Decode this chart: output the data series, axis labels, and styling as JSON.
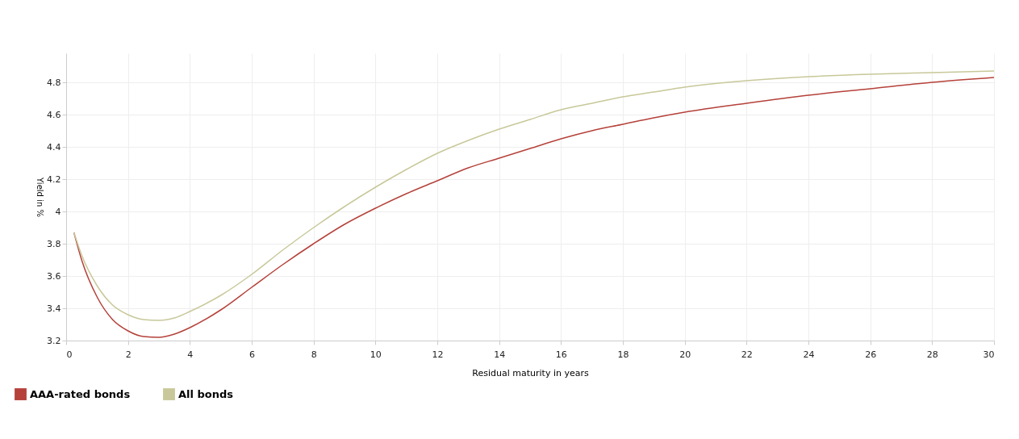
{
  "chart_data": {
    "type": "line",
    "xlabel": "Residual maturity in years",
    "ylabel": "Yield in %",
    "x": [
      0.25,
      0.5,
      1,
      1.5,
      2,
      2.5,
      3,
      3.5,
      4,
      5,
      6,
      7,
      8,
      9,
      10,
      11,
      12,
      13,
      14,
      15,
      16,
      17,
      18,
      19,
      20,
      22,
      24,
      26,
      28,
      30
    ],
    "series": [
      {
        "name": "AAA-rated bonds",
        "color": "#b5413a",
        "values": [
          3.87,
          3.7,
          3.47,
          3.33,
          3.26,
          3.225,
          3.22,
          3.24,
          3.28,
          3.39,
          3.53,
          3.67,
          3.8,
          3.92,
          4.02,
          4.11,
          4.19,
          4.27,
          4.33,
          4.39,
          4.45,
          4.5,
          4.54,
          4.58,
          4.615,
          4.67,
          4.72,
          4.76,
          4.8,
          4.83
        ]
      },
      {
        "name": "All bonds",
        "color": "#c8c89a",
        "values": [
          3.87,
          3.73,
          3.54,
          3.42,
          3.36,
          3.33,
          3.325,
          3.34,
          3.38,
          3.48,
          3.61,
          3.76,
          3.9,
          4.03,
          4.15,
          4.26,
          4.36,
          4.44,
          4.51,
          4.57,
          4.63,
          4.67,
          4.71,
          4.74,
          4.77,
          4.81,
          4.835,
          4.85,
          4.86,
          4.87
        ]
      }
    ],
    "xlim": [
      0,
      30
    ],
    "xticks": [
      0,
      2,
      4,
      6,
      8,
      10,
      12,
      14,
      16,
      18,
      20,
      22,
      24,
      26,
      28,
      30
    ],
    "ylim": [
      3.2,
      4.98
    ],
    "yticks": [
      3.2,
      3.4,
      3.6,
      3.8,
      4,
      4.2,
      4.4,
      4.6,
      4.8
    ],
    "grid": true,
    "legend": "bottom left",
    "line_style": "solid"
  }
}
